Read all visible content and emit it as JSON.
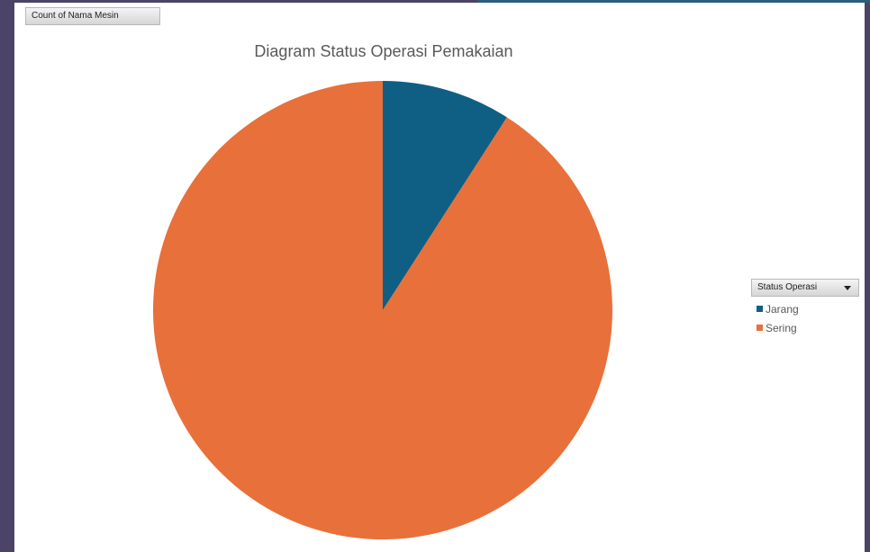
{
  "field_button_label": "Count of Nama Mesin",
  "legend": {
    "header": "Status Operasi",
    "dropdown_icon": "chevron-down-icon"
  },
  "chart_data": {
    "type": "pie",
    "title": "Diagram Status Operasi Pemakaian",
    "categories": [
      "Jarang",
      "Sering"
    ],
    "values": [
      1,
      10
    ],
    "colors": [
      "#0f5f84",
      "#e8703a"
    ],
    "legend_position": "right",
    "start_angle_deg": 0,
    "direction": "clockwise"
  }
}
